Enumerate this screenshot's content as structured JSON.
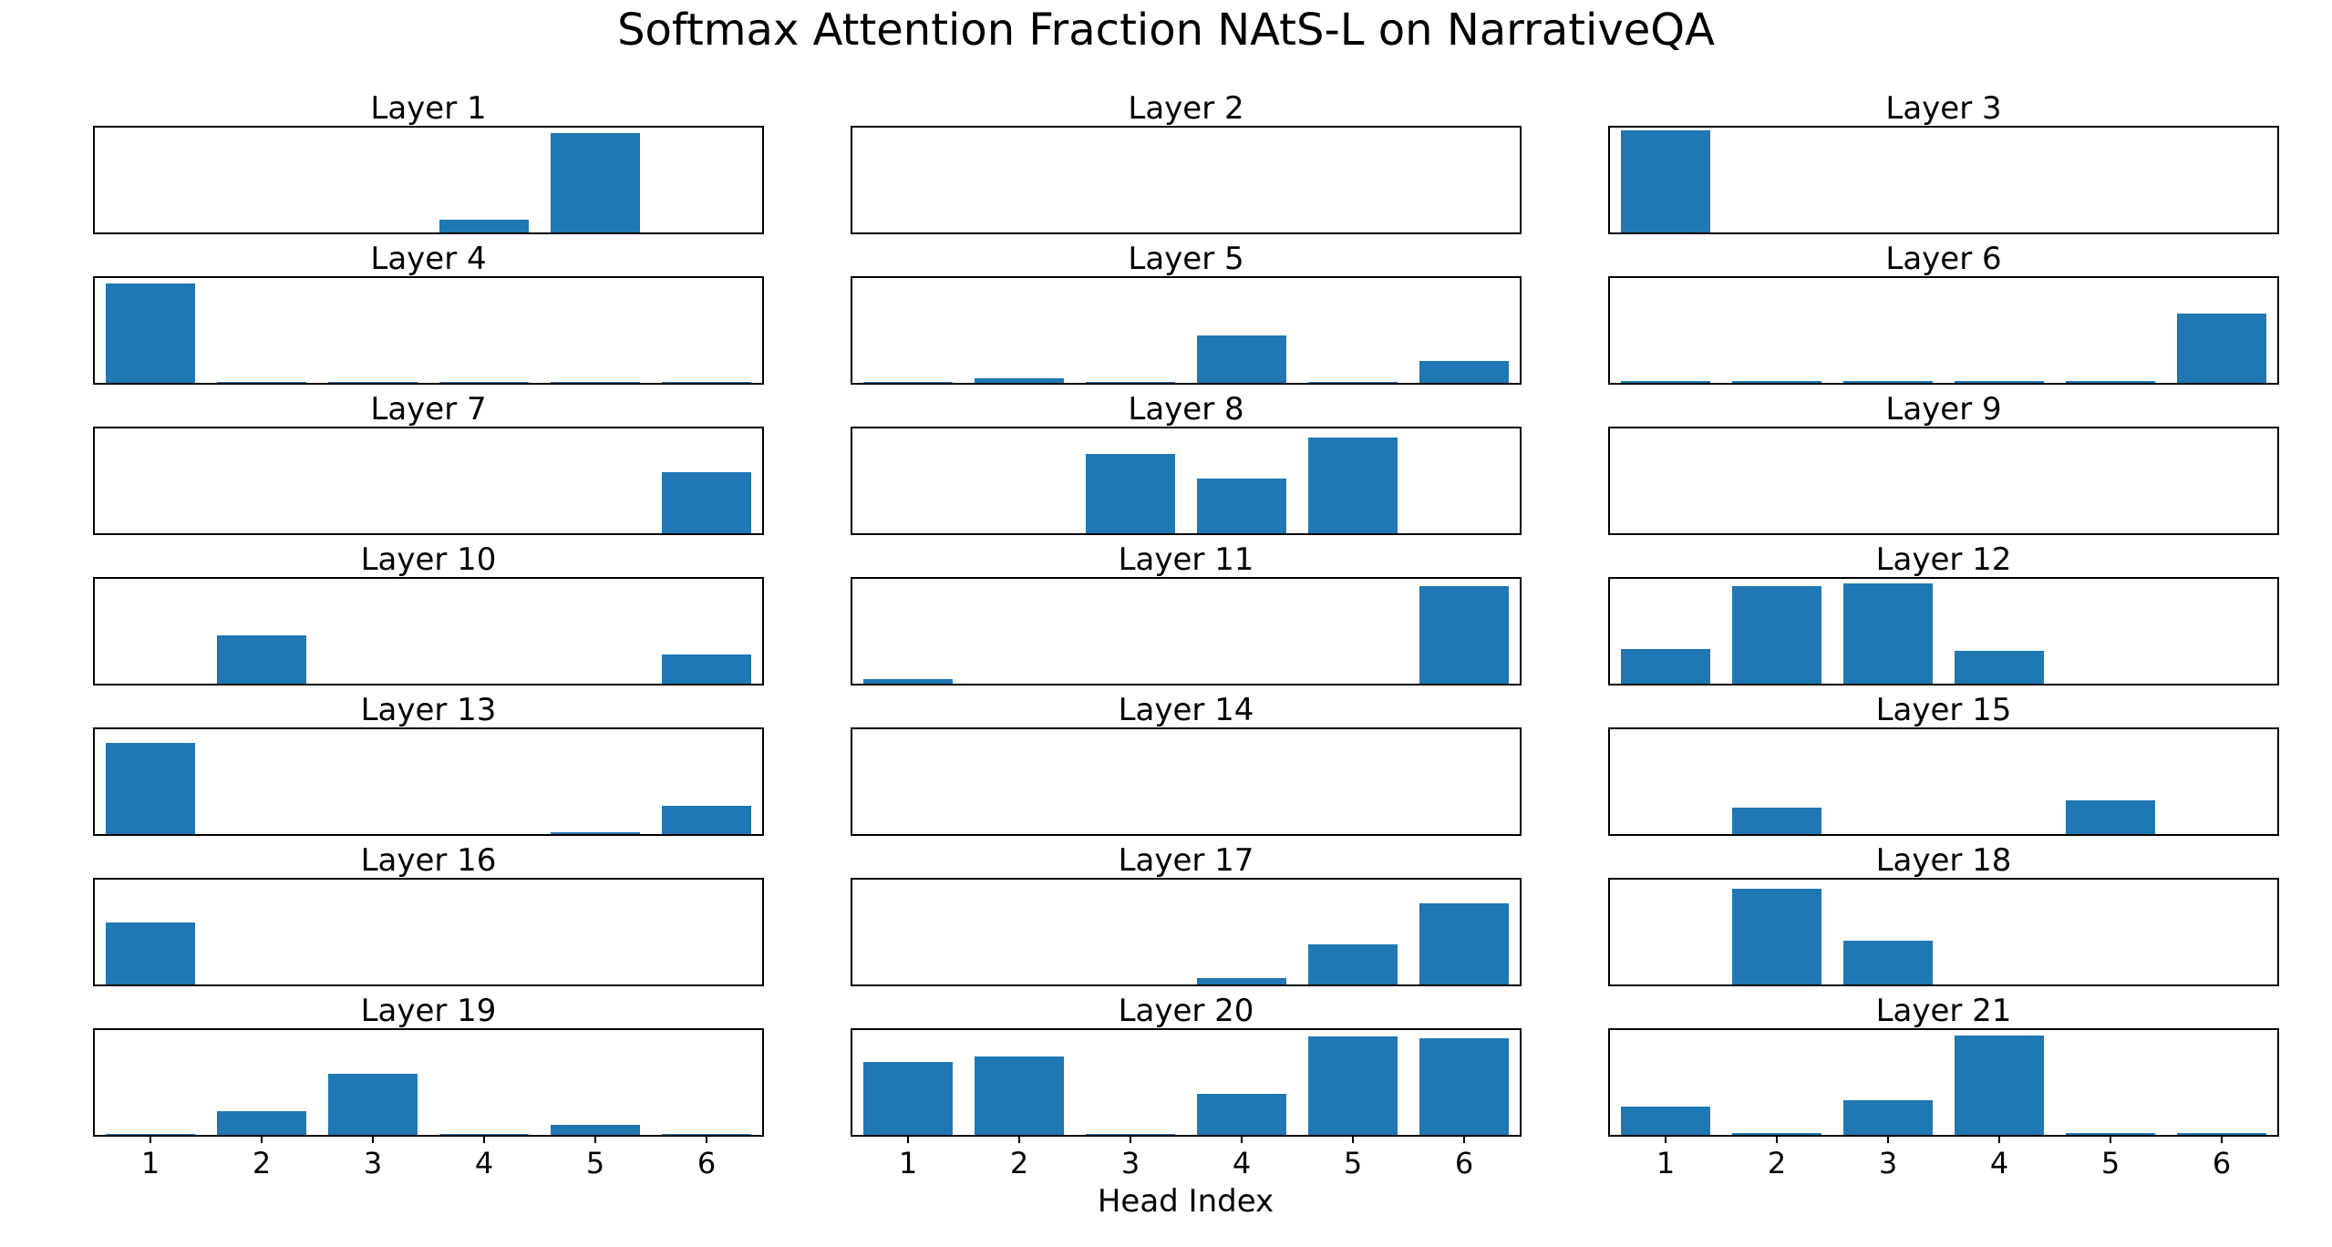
{
  "figure": {
    "background": "#ffffff"
  },
  "chart_data": {
    "type": "bar",
    "title": "Softmax Attention Fraction NAtS-L on NarrativeQA",
    "xlabel": "Head Index",
    "categories": [
      "1",
      "2",
      "3",
      "4",
      "5",
      "6"
    ],
    "ylim": [
      0,
      1
    ],
    "bar_color": "#1f77b4",
    "axis_color": "#000000",
    "grid": "off",
    "legend": "none",
    "layout": {
      "rows": 7,
      "cols": 3,
      "xticks_only_on_bottom_row": true
    },
    "subplots": [
      {
        "title": "Layer 1",
        "values": [
          0,
          0,
          0,
          0.12,
          0.95,
          0
        ]
      },
      {
        "title": "Layer 2",
        "values": [
          0,
          0,
          0,
          0,
          0,
          0
        ]
      },
      {
        "title": "Layer 3",
        "values": [
          0.97,
          0,
          0,
          0,
          0,
          0
        ]
      },
      {
        "title": "Layer 4",
        "values": [
          0.95,
          0.01,
          0.01,
          0.01,
          0.01,
          0.01
        ]
      },
      {
        "title": "Layer 5",
        "values": [
          0.01,
          0.04,
          0.01,
          0.45,
          0.01,
          0.21
        ]
      },
      {
        "title": "Layer 6",
        "values": [
          0.015,
          0.015,
          0.015,
          0.015,
          0.015,
          0.66
        ]
      },
      {
        "title": "Layer 7",
        "values": [
          0,
          0,
          0,
          0,
          0,
          0.58
        ]
      },
      {
        "title": "Layer 8",
        "values": [
          0,
          0,
          0.76,
          0.52,
          0.91,
          0
        ]
      },
      {
        "title": "Layer 9",
        "values": [
          0,
          0,
          0,
          0,
          0,
          0
        ]
      },
      {
        "title": "Layer 10",
        "values": [
          0,
          0.46,
          0,
          0,
          0,
          0.28
        ]
      },
      {
        "title": "Layer 11",
        "values": [
          0.045,
          0,
          0,
          0,
          0,
          0.93
        ]
      },
      {
        "title": "Layer 12",
        "values": [
          0.33,
          0.93,
          0.96,
          0.31,
          0,
          0
        ]
      },
      {
        "title": "Layer 13",
        "values": [
          0.87,
          0,
          0,
          0,
          0.02,
          0.27
        ]
      },
      {
        "title": "Layer 14",
        "values": [
          0,
          0,
          0,
          0,
          0,
          0
        ]
      },
      {
        "title": "Layer 15",
        "values": [
          0,
          0.25,
          0,
          0,
          0.32,
          0
        ]
      },
      {
        "title": "Layer 16",
        "values": [
          0.59,
          0,
          0,
          0,
          0,
          0
        ]
      },
      {
        "title": "Layer 17",
        "values": [
          0,
          0,
          0,
          0.06,
          0.38,
          0.77
        ]
      },
      {
        "title": "Layer 18",
        "values": [
          0,
          0.91,
          0.42,
          0,
          0,
          0
        ]
      },
      {
        "title": "Layer 19",
        "values": [
          0.01,
          0.23,
          0.58,
          0.01,
          0.1,
          0.01
        ]
      },
      {
        "title": "Layer 20",
        "values": [
          0.7,
          0.75,
          0.01,
          0.39,
          0.94,
          0.92
        ]
      },
      {
        "title": "Layer 21",
        "values": [
          0.27,
          0.015,
          0.33,
          0.95,
          0.02,
          0.015
        ]
      }
    ]
  }
}
